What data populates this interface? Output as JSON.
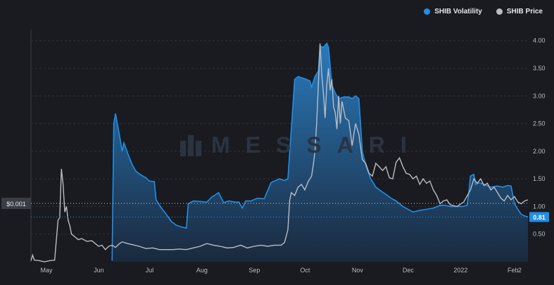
{
  "legend": {
    "volatility_label": "SHIB Volatility",
    "price_label": "SHIB Price"
  },
  "watermark": "MESSARI",
  "colors": {
    "background": "#1a1b20",
    "volatility": "#1f8fe8",
    "price": "#b9bcc4",
    "grid": "#2f323a"
  },
  "chart_data": {
    "type": "area",
    "title": "",
    "x_tick_labels": [
      "May",
      "Jun",
      "Jul",
      "Aug",
      "Sep",
      "Oct",
      "Nov",
      "Dec",
      "2022",
      "Feb",
      "2"
    ],
    "x_ticks": [
      0,
      31,
      61,
      92,
      123,
      153,
      184,
      214,
      245,
      276,
      280
    ],
    "y_right": {
      "ticks": [
        0.5,
        1.0,
        1.5,
        2.0,
        2.5,
        3.0,
        3.5,
        4.0
      ],
      "tick_labels": [
        "0.50",
        "1.00",
        "1.50",
        "2.00",
        "2.50",
        "3.00",
        "3.50",
        "4.00"
      ],
      "range": [
        0.0,
        4.2
      ]
    },
    "price_marker": {
      "label": "$0.001"
    },
    "volatility_marker": {
      "label": "0.81",
      "value": 0.81
    },
    "grid": true,
    "legend_position": "top-right",
    "series": [
      {
        "name": "SHIB Volatility",
        "type": "area",
        "color": "#1f8fe8",
        "points": [
          [
            48,
            0.02
          ],
          [
            49,
            2.5
          ],
          [
            50,
            2.68
          ],
          [
            52,
            2.35
          ],
          [
            54,
            2.0
          ],
          [
            55,
            2.15
          ],
          [
            58,
            1.9
          ],
          [
            60,
            1.75
          ],
          [
            62,
            1.64
          ],
          [
            65,
            1.57
          ],
          [
            68,
            1.52
          ],
          [
            70,
            1.46
          ],
          [
            73,
            1.45
          ],
          [
            74,
            1.12
          ],
          [
            77,
            0.98
          ],
          [
            80,
            0.86
          ],
          [
            83,
            0.73
          ],
          [
            86,
            0.66
          ],
          [
            89,
            0.63
          ],
          [
            92,
            0.61
          ],
          [
            93,
            1.05
          ],
          [
            96,
            1.1
          ],
          [
            100,
            1.09
          ],
          [
            104,
            1.08
          ],
          [
            107,
            1.17
          ],
          [
            111,
            1.25
          ],
          [
            114,
            1.07
          ],
          [
            117,
            1.1
          ],
          [
            121,
            1.08
          ],
          [
            123,
            1.08
          ],
          [
            125,
            0.97
          ],
          [
            127,
            1.1
          ],
          [
            130,
            1.1
          ],
          [
            134,
            1.15
          ],
          [
            138,
            1.14
          ],
          [
            142,
            1.43
          ],
          [
            144,
            1.46
          ],
          [
            147,
            1.5
          ],
          [
            150,
            1.47
          ],
          [
            152,
            1.5
          ],
          [
            154,
            2.4
          ],
          [
            156,
            3.3
          ],
          [
            158,
            3.35
          ],
          [
            161,
            3.32
          ],
          [
            163,
            3.3
          ],
          [
            165,
            3.27
          ],
          [
            166,
            3.16
          ],
          [
            168,
            3.35
          ],
          [
            170,
            3.45
          ],
          [
            171,
            3.9
          ],
          [
            173,
            3.88
          ],
          [
            175,
            3.95
          ],
          [
            176,
            3.88
          ],
          [
            178,
            3.2
          ],
          [
            180,
            3.05
          ],
          [
            182,
            2.95
          ],
          [
            185,
            2.98
          ],
          [
            188,
            2.98
          ],
          [
            190,
            2.95
          ],
          [
            192,
            3.0
          ],
          [
            194,
            2.95
          ],
          [
            196,
            2.0
          ],
          [
            198,
            1.75
          ],
          [
            201,
            1.5
          ],
          [
            204,
            1.35
          ],
          [
            207,
            1.28
          ],
          [
            210,
            1.22
          ],
          [
            213,
            1.15
          ],
          [
            216,
            1.1
          ],
          [
            220,
            1.0
          ],
          [
            223,
            0.95
          ],
          [
            226,
            0.9
          ],
          [
            230,
            0.93
          ],
          [
            234,
            0.95
          ],
          [
            238,
            0.97
          ],
          [
            242,
            1.02
          ],
          [
            245,
            1.02
          ],
          [
            248,
            1.0
          ],
          [
            252,
            1.0
          ],
          [
            255,
            1.0
          ],
          [
            258,
            1.02
          ],
          [
            259,
            1.25
          ],
          [
            260,
            1.55
          ],
          [
            262,
            1.58
          ],
          [
            263,
            1.4
          ],
          [
            265,
            1.43
          ],
          [
            268,
            1.4
          ],
          [
            272,
            1.35
          ],
          [
            276,
            1.37
          ],
          [
            279,
            1.35
          ],
          [
            282,
            1.38
          ],
          [
            284,
            1.37
          ],
          [
            286,
            1.05
          ],
          [
            288,
            0.95
          ],
          [
            290,
            0.86
          ],
          [
            292,
            0.83
          ],
          [
            294,
            0.81
          ]
        ]
      },
      {
        "name": "SHIB Price",
        "type": "line",
        "color": "#b9bcc4",
        "points": [
          [
            0,
            0.02
          ],
          [
            1,
            0.12
          ],
          [
            2,
            0.03
          ],
          [
            5,
            0.02
          ],
          [
            8,
            0.0
          ],
          [
            11,
            0.02
          ],
          [
            14,
            0.03
          ],
          [
            16,
            0.75
          ],
          [
            17,
            0.8
          ],
          [
            18,
            1.68
          ],
          [
            19,
            1.4
          ],
          [
            20,
            0.9
          ],
          [
            21,
            1.0
          ],
          [
            22,
            0.75
          ],
          [
            23,
            0.65
          ],
          [
            24,
            0.5
          ],
          [
            26,
            0.45
          ],
          [
            28,
            0.4
          ],
          [
            30,
            0.42
          ],
          [
            33,
            0.37
          ],
          [
            36,
            0.38
          ],
          [
            38,
            0.33
          ],
          [
            40,
            0.28
          ],
          [
            42,
            0.3
          ],
          [
            44,
            0.22
          ],
          [
            46,
            0.28
          ],
          [
            48,
            0.3
          ],
          [
            50,
            0.26
          ],
          [
            52,
            0.32
          ],
          [
            54,
            0.36
          ],
          [
            57,
            0.33
          ],
          [
            60,
            0.31
          ],
          [
            64,
            0.28
          ],
          [
            68,
            0.24
          ],
          [
            72,
            0.25
          ],
          [
            76,
            0.22
          ],
          [
            80,
            0.22
          ],
          [
            84,
            0.22
          ],
          [
            88,
            0.23
          ],
          [
            92,
            0.22
          ],
          [
            96,
            0.25
          ],
          [
            100,
            0.28
          ],
          [
            104,
            0.33
          ],
          [
            108,
            0.3
          ],
          [
            112,
            0.28
          ],
          [
            116,
            0.25
          ],
          [
            120,
            0.26
          ],
          [
            124,
            0.3
          ],
          [
            128,
            0.25
          ],
          [
            132,
            0.28
          ],
          [
            136,
            0.3
          ],
          [
            140,
            0.28
          ],
          [
            144,
            0.3
          ],
          [
            148,
            0.3
          ],
          [
            150,
            0.35
          ],
          [
            152,
            0.58
          ],
          [
            153,
            1.1
          ],
          [
            154,
            1.25
          ],
          [
            156,
            1.2
          ],
          [
            158,
            1.35
          ],
          [
            160,
            1.4
          ],
          [
            162,
            1.3
          ],
          [
            164,
            1.45
          ],
          [
            166,
            1.55
          ],
          [
            167,
            1.75
          ],
          [
            168,
            2.0
          ],
          [
            169,
            2.5
          ],
          [
            170,
            3.2
          ],
          [
            171,
            3.95
          ],
          [
            172,
            3.4
          ],
          [
            173,
            3.05
          ],
          [
            174,
            2.6
          ],
          [
            175,
            3.2
          ],
          [
            176,
            3.5
          ],
          [
            177,
            3.1
          ],
          [
            178,
            3.3
          ],
          [
            179,
            2.8
          ],
          [
            180,
            2.7
          ],
          [
            181,
            2.4
          ],
          [
            182,
            3.0
          ],
          [
            183,
            2.5
          ],
          [
            184,
            2.9
          ],
          [
            186,
            2.6
          ],
          [
            188,
            2.55
          ],
          [
            190,
            2.1
          ],
          [
            192,
            2.5
          ],
          [
            194,
            2.3
          ],
          [
            196,
            1.85
          ],
          [
            198,
            1.78
          ],
          [
            200,
            1.6
          ],
          [
            202,
            1.55
          ],
          [
            204,
            1.78
          ],
          [
            206,
            1.72
          ],
          [
            208,
            1.65
          ],
          [
            210,
            1.72
          ],
          [
            212,
            1.52
          ],
          [
            214,
            1.5
          ],
          [
            216,
            1.8
          ],
          [
            218,
            1.88
          ],
          [
            220,
            1.72
          ],
          [
            222,
            1.6
          ],
          [
            224,
            1.58
          ],
          [
            226,
            1.5
          ],
          [
            228,
            1.55
          ],
          [
            230,
            1.4
          ],
          [
            232,
            1.5
          ],
          [
            234,
            1.42
          ],
          [
            236,
            1.46
          ],
          [
            238,
            1.3
          ],
          [
            240,
            1.2
          ],
          [
            242,
            1.05
          ],
          [
            244,
            1.1
          ],
          [
            246,
            1.12
          ],
          [
            248,
            1.03
          ],
          [
            252,
            1.0
          ],
          [
            256,
            1.08
          ],
          [
            260,
            1.3
          ],
          [
            262,
            1.5
          ],
          [
            264,
            1.42
          ],
          [
            266,
            1.5
          ],
          [
            268,
            1.38
          ],
          [
            270,
            1.42
          ],
          [
            272,
            1.3
          ],
          [
            274,
            1.35
          ],
          [
            276,
            1.25
          ],
          [
            278,
            1.15
          ],
          [
            280,
            1.1
          ],
          [
            282,
            1.2
          ],
          [
            284,
            1.12
          ],
          [
            286,
            1.18
          ],
          [
            288,
            1.08
          ],
          [
            290,
            1.05
          ],
          [
            292,
            1.1
          ],
          [
            294,
            1.12
          ]
        ]
      }
    ]
  }
}
